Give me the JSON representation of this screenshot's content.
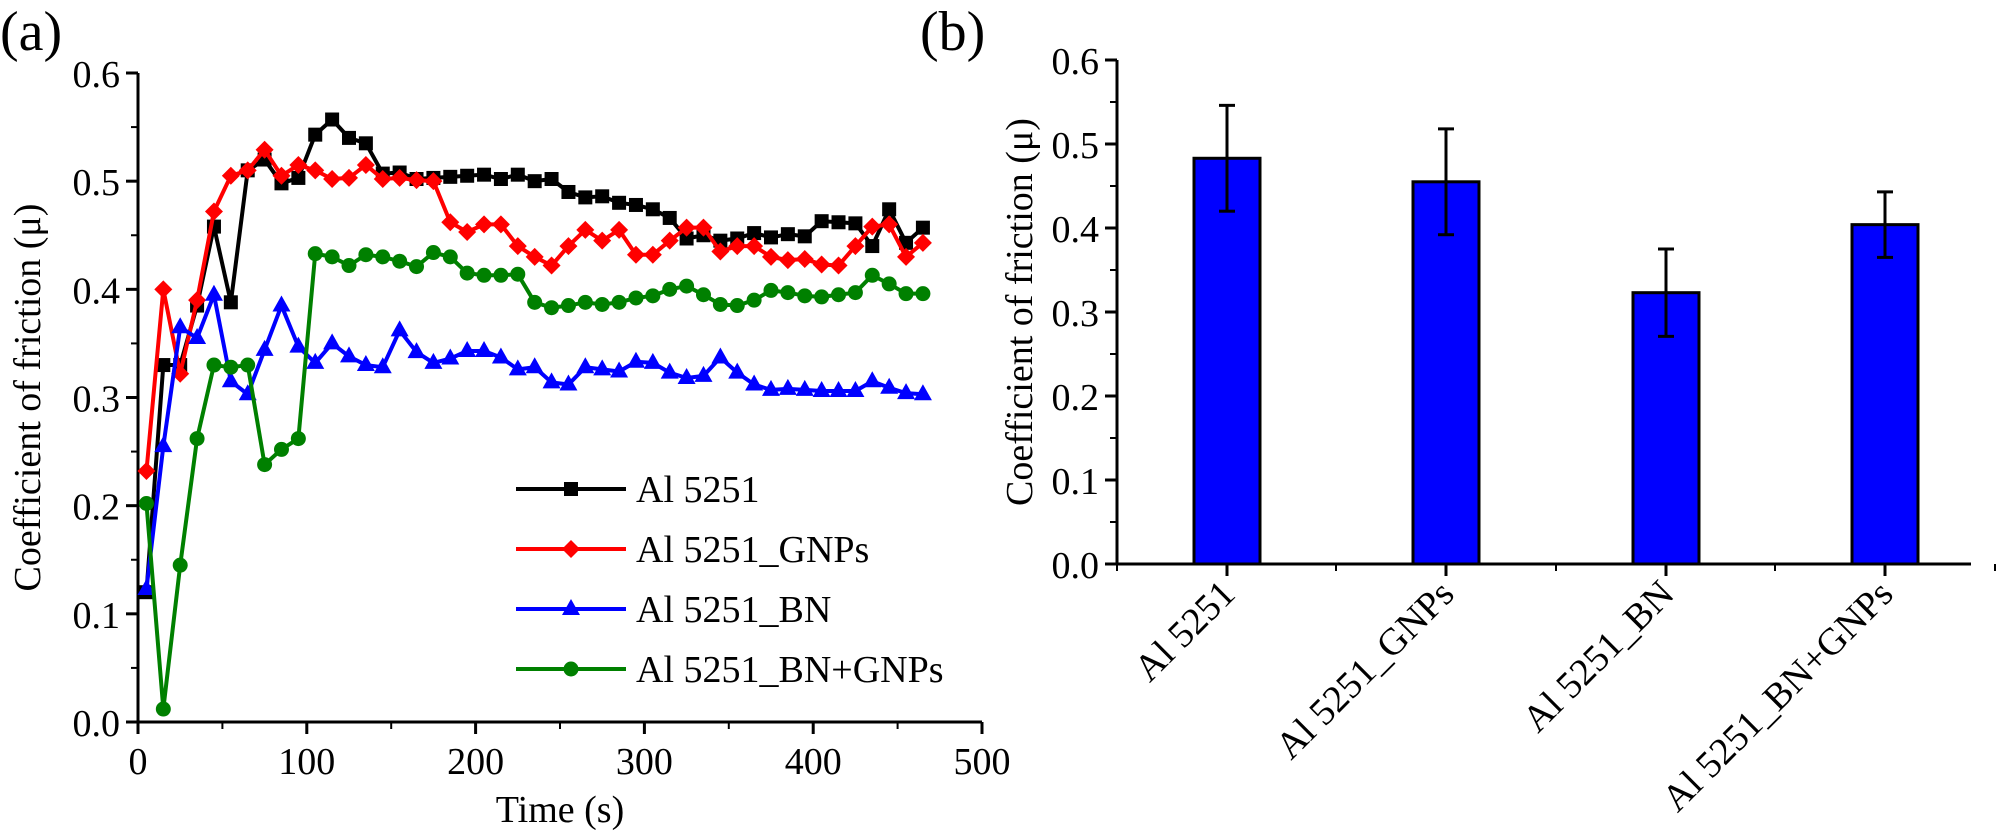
{
  "chart_data": [
    {
      "panel_label": "(a)",
      "type": "line",
      "xlabel": "Time (s)",
      "ylabel": "Coefficient of friction (μ)",
      "xlim": [
        0,
        500
      ],
      "ylim": [
        0.0,
        0.6
      ],
      "xticks": [
        "0",
        "100",
        "200",
        "300",
        "400",
        "500"
      ],
      "yticks": [
        "0.0",
        "0.1",
        "0.2",
        "0.3",
        "0.4",
        "0.5",
        "0.6"
      ],
      "legend_position": "bottom-right",
      "x": [
        5,
        15,
        25,
        35,
        45,
        55,
        65,
        75,
        85,
        95,
        105,
        115,
        125,
        135,
        145,
        155,
        165,
        175,
        185,
        195,
        205,
        215,
        225,
        235,
        245,
        255,
        265,
        275,
        285,
        295,
        305,
        315,
        325,
        335,
        345,
        355,
        365,
        375,
        385,
        395,
        405,
        415,
        425,
        435,
        445,
        455,
        465
      ],
      "series": [
        {
          "name": "Al 5251",
          "color": "#000000",
          "marker": "square",
          "values": [
            0.12,
            0.33,
            0.33,
            0.385,
            0.458,
            0.388,
            0.51,
            0.52,
            0.498,
            0.503,
            0.543,
            0.557,
            0.54,
            0.535,
            0.507,
            0.508,
            0.502,
            0.503,
            0.504,
            0.505,
            0.506,
            0.502,
            0.506,
            0.5,
            0.502,
            0.49,
            0.485,
            0.486,
            0.48,
            0.478,
            0.474,
            0.466,
            0.447,
            0.45,
            0.445,
            0.447,
            0.452,
            0.448,
            0.451,
            0.449,
            0.463,
            0.462,
            0.461,
            0.44,
            0.474,
            0.443,
            0.457
          ]
        },
        {
          "name": "Al 5251_GNPs",
          "color": "#ff0000",
          "marker": "diamond",
          "values": [
            0.232,
            0.4,
            0.322,
            0.39,
            0.472,
            0.505,
            0.51,
            0.529,
            0.505,
            0.515,
            0.51,
            0.502,
            0.503,
            0.515,
            0.502,
            0.503,
            0.501,
            0.5,
            0.462,
            0.453,
            0.46,
            0.46,
            0.44,
            0.43,
            0.422,
            0.44,
            0.455,
            0.445,
            0.455,
            0.432,
            0.432,
            0.445,
            0.457,
            0.457,
            0.435,
            0.44,
            0.44,
            0.43,
            0.427,
            0.428,
            0.423,
            0.422,
            0.44,
            0.458,
            0.46,
            0.43,
            0.443
          ]
        },
        {
          "name": "Al 5251_BN",
          "color": "#0000ff",
          "marker": "triangle",
          "values": [
            0.123,
            0.255,
            0.365,
            0.355,
            0.395,
            0.315,
            0.303,
            0.344,
            0.385,
            0.347,
            0.332,
            0.35,
            0.338,
            0.33,
            0.328,
            0.362,
            0.342,
            0.332,
            0.336,
            0.343,
            0.343,
            0.337,
            0.326,
            0.328,
            0.314,
            0.312,
            0.328,
            0.326,
            0.324,
            0.333,
            0.332,
            0.323,
            0.318,
            0.32,
            0.337,
            0.323,
            0.312,
            0.307,
            0.308,
            0.307,
            0.306,
            0.306,
            0.306,
            0.315,
            0.309,
            0.304,
            0.303
          ]
        },
        {
          "name": "Al 5251_BN+GNPs",
          "color": "#008000",
          "marker": "circle",
          "values": [
            0.202,
            0.012,
            0.145,
            0.262,
            0.33,
            0.328,
            0.33,
            0.238,
            0.252,
            0.262,
            0.433,
            0.43,
            0.422,
            0.432,
            0.43,
            0.426,
            0.421,
            0.434,
            0.43,
            0.415,
            0.413,
            0.413,
            0.414,
            0.388,
            0.383,
            0.385,
            0.388,
            0.386,
            0.388,
            0.392,
            0.394,
            0.4,
            0.403,
            0.395,
            0.386,
            0.385,
            0.39,
            0.399,
            0.397,
            0.394,
            0.393,
            0.395,
            0.397,
            0.413,
            0.405,
            0.396,
            0.396
          ]
        }
      ]
    },
    {
      "panel_label": "(b)",
      "type": "bar",
      "xlabel": "",
      "ylabel": "Coefficient of friction (μ)",
      "ylim": [
        0.0,
        0.6
      ],
      "yticks": [
        "0.0",
        "0.1",
        "0.2",
        "0.3",
        "0.4",
        "0.5",
        "0.6"
      ],
      "categories": [
        "Al 5251",
        "Al 5251_GNPs",
        "Al 5251_BN",
        "Al 5251_BN+GNPs"
      ],
      "values": [
        0.483,
        0.455,
        0.323,
        0.404
      ],
      "error": [
        0.063,
        0.063,
        0.052,
        0.039
      ],
      "bar_color": "#0000ff"
    }
  ]
}
